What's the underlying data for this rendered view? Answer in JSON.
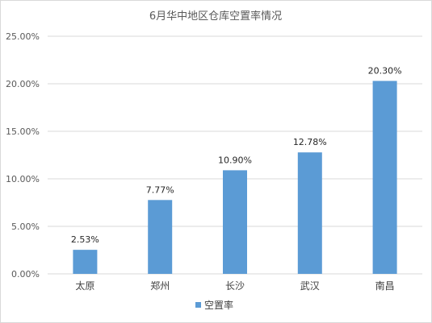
{
  "chart_data": {
    "type": "bar",
    "title": "6月华中地区仓库空置率情况",
    "categories": [
      "太原",
      "郑州",
      "长沙",
      "武汉",
      "南昌"
    ],
    "series": [
      {
        "name": "空置率",
        "values": [
          2.53,
          7.77,
          10.9,
          12.78,
          20.3
        ],
        "labels": [
          "2.53%",
          "7.77%",
          "10.90%",
          "12.78%",
          "20.30%"
        ],
        "color": "#5b9bd5"
      }
    ],
    "y_ticks": [
      "0.00%",
      "5.00%",
      "10.00%",
      "15.00%",
      "20.00%",
      "25.00%"
    ],
    "ylim": [
      0,
      25
    ],
    "y_unit": "%",
    "grid": true,
    "legend_position": "bottom"
  }
}
